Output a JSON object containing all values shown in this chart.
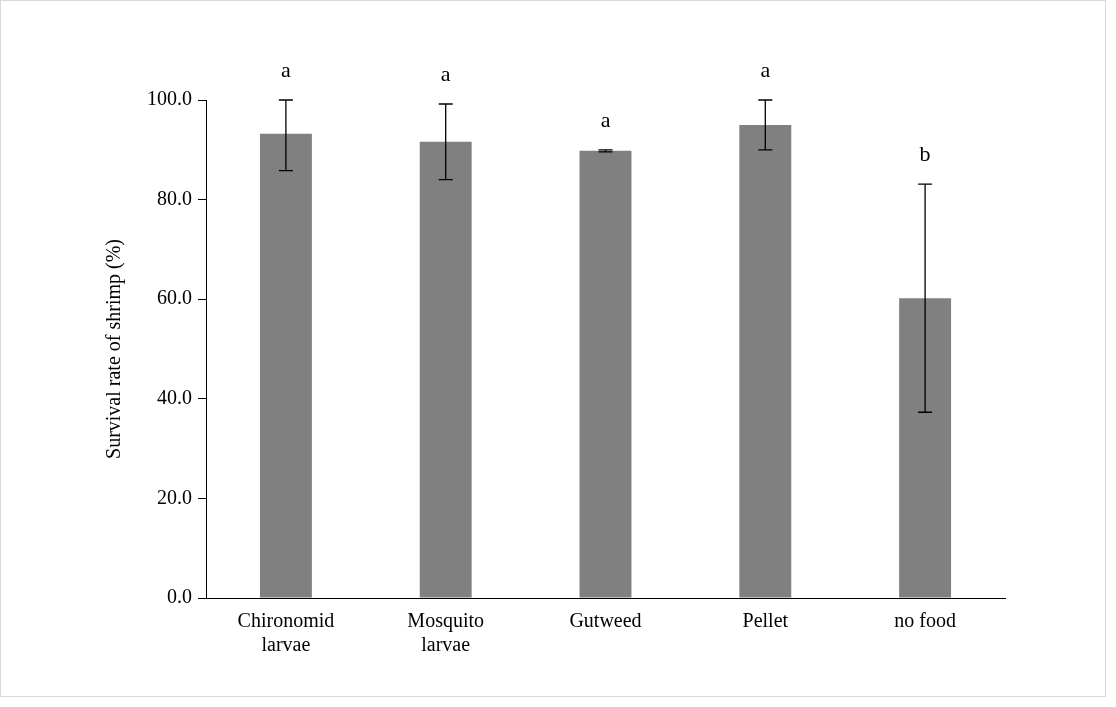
{
  "chart_data": {
    "type": "bar",
    "ylabel": "Survival rate of shrimp (%)",
    "categories": [
      "Chironomid larvae",
      "Mosquito larvae",
      "Gutweed",
      "Pellet",
      "no food"
    ],
    "values": [
      93.2,
      91.6,
      89.8,
      95.0,
      60.2
    ],
    "errors": [
      [
        85.8,
        100
      ],
      7.6,
      0.2,
      5.0,
      22.9
    ],
    "color": "#808080",
    "ylim": [
      0,
      100
    ],
    "yticks": [
      {
        "value": 0,
        "label": "0.0"
      },
      {
        "value": 20,
        "label": "20.0"
      },
      {
        "value": 40,
        "label": "40.0"
      },
      {
        "value": 60,
        "label": "60.0"
      },
      {
        "value": 80,
        "label": "80.0"
      },
      {
        "value": 100,
        "label": "100.0"
      }
    ],
    "grid": false,
    "legend": false,
    "annotations": [
      "a",
      "a",
      "a",
      "a",
      "b"
    ]
  }
}
